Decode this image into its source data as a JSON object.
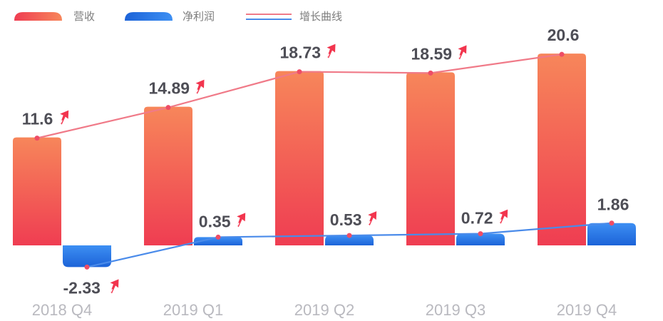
{
  "chart_data": {
    "type": "bar",
    "categories": [
      "2018 Q4",
      "2019 Q1",
      "2019 Q2",
      "2019 Q3",
      "2019 Q4"
    ],
    "series": [
      {
        "name": "营收",
        "values": [
          11.6,
          14.89,
          18.73,
          18.59,
          20.6
        ],
        "color": "#f0484f"
      },
      {
        "name": "净利润",
        "values": [
          -2.33,
          0.35,
          0.53,
          0.72,
          1.86
        ],
        "color": "#2b7ae6"
      }
    ],
    "labels": {
      "revenue": [
        "11.6",
        "14.89",
        "18.73",
        "18.59",
        "20.6"
      ],
      "net_profit": [
        "-2.33",
        "0.35",
        "0.53",
        "0.72",
        "1.86"
      ]
    },
    "trend_line_label": "增长曲线",
    "trend_icon": "growth-arrow-icon",
    "ylim": [
      -3.0,
      21.5
    ],
    "grid": false,
    "legend_position": "top-left",
    "colors": {
      "revenue_top": "#f7865a",
      "revenue_bottom": "#ef3d52",
      "profit_top": "#3d8ff3",
      "profit_bottom": "#1c63d8",
      "revenue_line": "#f07a88",
      "profit_line": "#4a8bea",
      "value_text": "#4e4e56",
      "axis_text": "#b9b9bf"
    }
  }
}
